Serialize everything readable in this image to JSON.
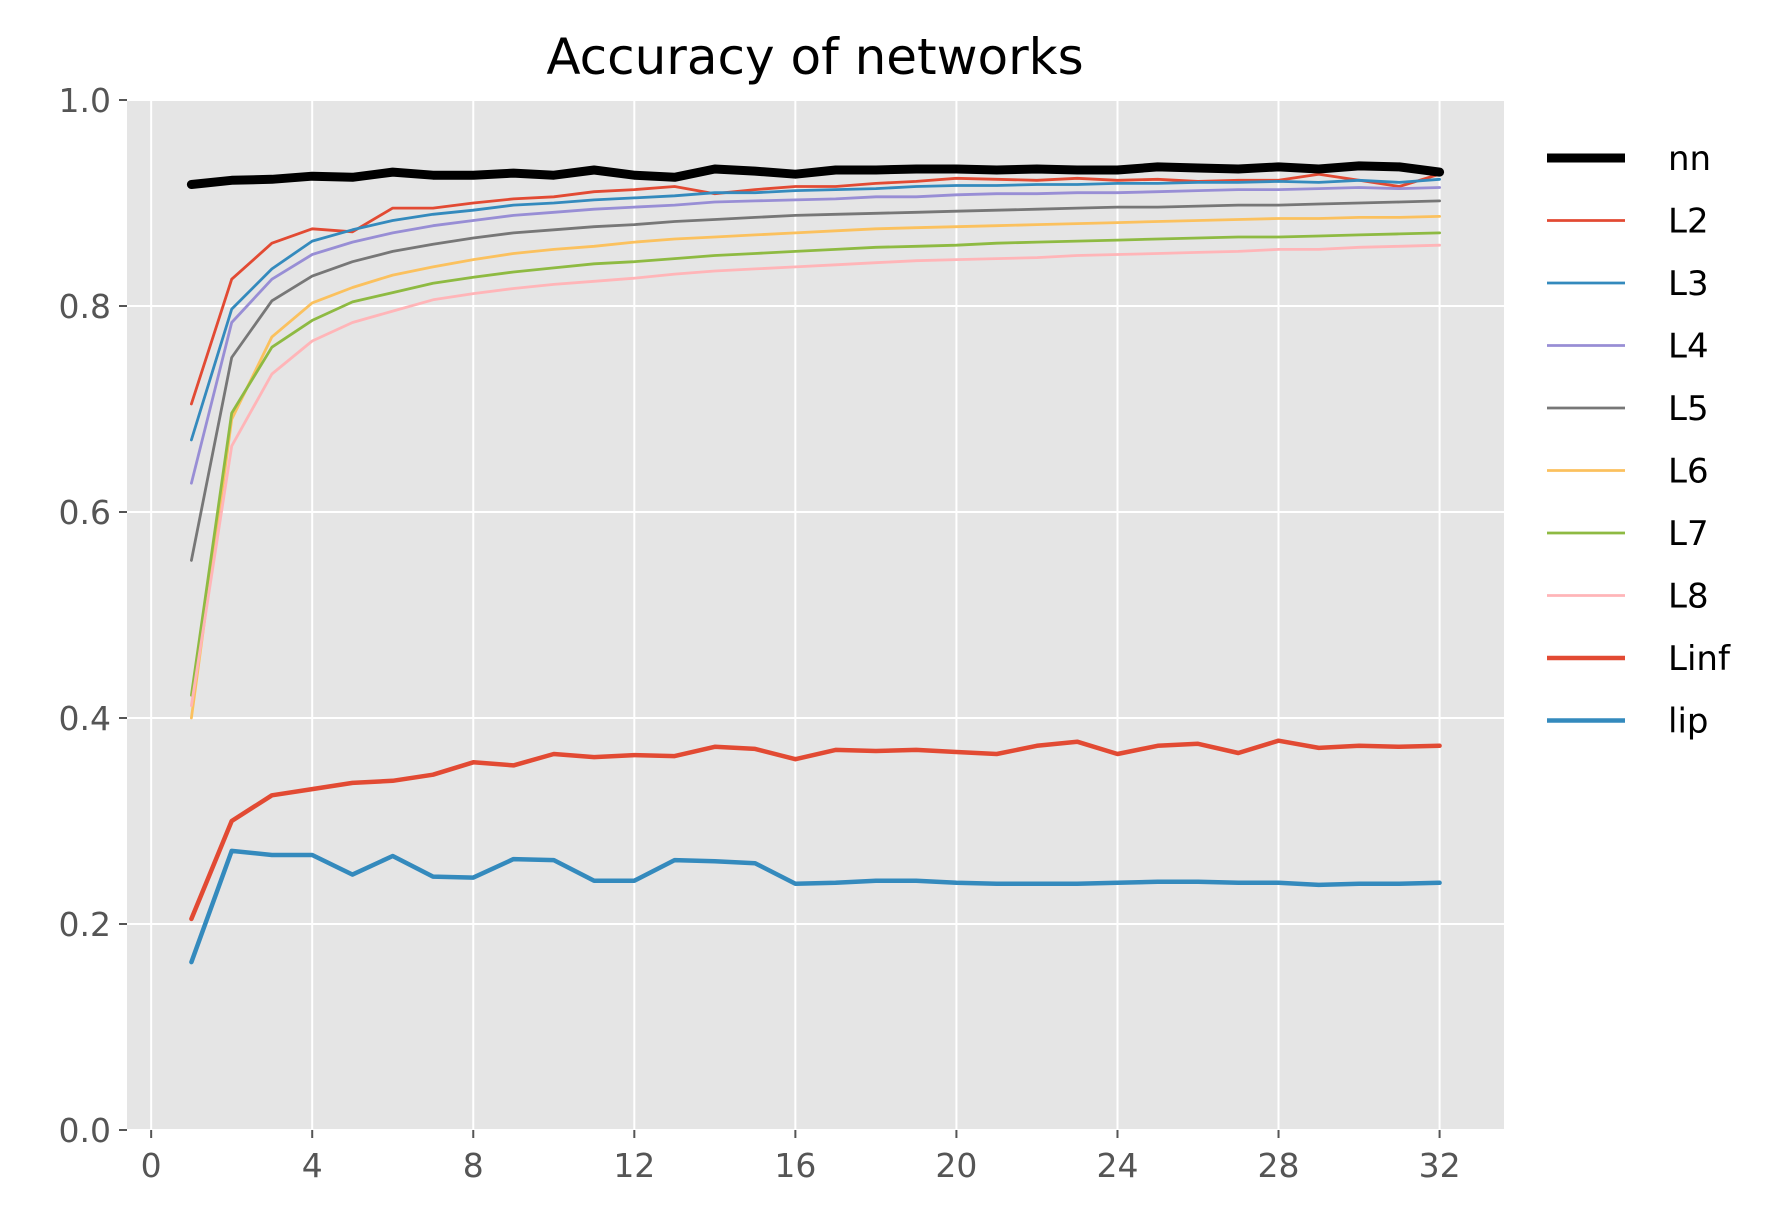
{
  "chart_data": {
    "type": "line",
    "title": "Accuracy of networks",
    "xlabel": "",
    "ylabel": "",
    "xlim": [
      -0.6,
      33.6
    ],
    "ylim": [
      0.0,
      1.0
    ],
    "xticks": [
      0,
      4,
      8,
      12,
      16,
      20,
      24,
      28,
      32
    ],
    "yticks": [
      0.0,
      0.2,
      0.4,
      0.6,
      0.8,
      1.0
    ],
    "xtick_labels": [
      "0",
      "4",
      "8",
      "12",
      "16",
      "20",
      "24",
      "28",
      "32"
    ],
    "ytick_labels": [
      "0.0",
      "0.2",
      "0.4",
      "0.6",
      "0.8",
      "1.0"
    ],
    "grid": true,
    "legend_position": "outside-right",
    "background_color": "#e5e5e5",
    "x": [
      1,
      2,
      3,
      4,
      5,
      6,
      7,
      8,
      9,
      10,
      11,
      12,
      13,
      14,
      15,
      16,
      17,
      18,
      19,
      20,
      21,
      22,
      23,
      24,
      25,
      26,
      27,
      28,
      29,
      30,
      31,
      32
    ],
    "series": [
      {
        "name": "nn",
        "color": "#000000",
        "values": [
          0.918,
          0.922,
          0.923,
          0.926,
          0.925,
          0.93,
          0.927,
          0.927,
          0.929,
          0.927,
          0.932,
          0.927,
          0.925,
          0.933,
          0.931,
          0.928,
          0.932,
          0.932,
          0.933,
          0.933,
          0.932,
          0.933,
          0.932,
          0.932,
          0.935,
          0.934,
          0.933,
          0.935,
          0.933,
          0.936,
          0.935,
          0.93
        ]
      },
      {
        "name": "L2",
        "color": "#e24a33",
        "values": [
          0.705,
          0.826,
          0.861,
          0.875,
          0.872,
          0.895,
          0.895,
          0.9,
          0.904,
          0.906,
          0.911,
          0.913,
          0.916,
          0.909,
          0.913,
          0.916,
          0.916,
          0.919,
          0.921,
          0.924,
          0.923,
          0.922,
          0.924,
          0.922,
          0.923,
          0.921,
          0.922,
          0.922,
          0.928,
          0.922,
          0.916,
          0.928
        ]
      },
      {
        "name": "L3",
        "color": "#348abd",
        "values": [
          0.67,
          0.797,
          0.836,
          0.863,
          0.874,
          0.883,
          0.889,
          0.893,
          0.898,
          0.9,
          0.903,
          0.905,
          0.907,
          0.91,
          0.91,
          0.912,
          0.913,
          0.914,
          0.916,
          0.917,
          0.917,
          0.918,
          0.918,
          0.919,
          0.919,
          0.92,
          0.92,
          0.921,
          0.92,
          0.922,
          0.92,
          0.923
        ]
      },
      {
        "name": "L4",
        "color": "#988ed5",
        "values": [
          0.628,
          0.784,
          0.826,
          0.85,
          0.862,
          0.871,
          0.878,
          0.883,
          0.888,
          0.891,
          0.894,
          0.896,
          0.898,
          0.901,
          0.902,
          0.903,
          0.904,
          0.906,
          0.906,
          0.908,
          0.909,
          0.909,
          0.91,
          0.91,
          0.911,
          0.912,
          0.913,
          0.913,
          0.914,
          0.915,
          0.914,
          0.915
        ]
      },
      {
        "name": "L5",
        "color": "#777777",
        "values": [
          0.553,
          0.75,
          0.805,
          0.829,
          0.843,
          0.853,
          0.86,
          0.866,
          0.871,
          0.874,
          0.877,
          0.879,
          0.882,
          0.884,
          0.886,
          0.888,
          0.889,
          0.89,
          0.891,
          0.892,
          0.893,
          0.894,
          0.895,
          0.896,
          0.896,
          0.897,
          0.898,
          0.898,
          0.899,
          0.9,
          0.901,
          0.902
        ]
      },
      {
        "name": "L6",
        "color": "#fbc15e",
        "values": [
          0.4,
          0.69,
          0.77,
          0.803,
          0.818,
          0.83,
          0.838,
          0.845,
          0.851,
          0.855,
          0.858,
          0.862,
          0.865,
          0.867,
          0.869,
          0.871,
          0.873,
          0.875,
          0.876,
          0.877,
          0.878,
          0.879,
          0.88,
          0.881,
          0.882,
          0.883,
          0.884,
          0.885,
          0.885,
          0.886,
          0.886,
          0.887
        ]
      },
      {
        "name": "L7",
        "color": "#8eba42",
        "values": [
          0.422,
          0.696,
          0.76,
          0.786,
          0.804,
          0.813,
          0.822,
          0.828,
          0.833,
          0.837,
          0.841,
          0.843,
          0.846,
          0.849,
          0.851,
          0.853,
          0.855,
          0.857,
          0.858,
          0.859,
          0.861,
          0.862,
          0.863,
          0.864,
          0.865,
          0.866,
          0.867,
          0.867,
          0.868,
          0.869,
          0.87,
          0.871
        ]
      },
      {
        "name": "L8",
        "color": "#ffb5b8",
        "values": [
          0.412,
          0.664,
          0.734,
          0.766,
          0.784,
          0.795,
          0.806,
          0.812,
          0.817,
          0.821,
          0.824,
          0.827,
          0.831,
          0.834,
          0.836,
          0.838,
          0.84,
          0.842,
          0.844,
          0.845,
          0.846,
          0.847,
          0.849,
          0.85,
          0.851,
          0.852,
          0.853,
          0.855,
          0.855,
          0.857,
          0.858,
          0.859
        ]
      },
      {
        "name": "Linf",
        "color": "#e24a33",
        "values": [
          0.205,
          0.3,
          0.325,
          0.331,
          0.337,
          0.339,
          0.345,
          0.357,
          0.354,
          0.365,
          0.362,
          0.364,
          0.363,
          0.372,
          0.37,
          0.36,
          0.369,
          0.368,
          0.369,
          0.367,
          0.365,
          0.373,
          0.377,
          0.365,
          0.373,
          0.375,
          0.366,
          0.378,
          0.371,
          0.373,
          0.372,
          0.373
        ]
      },
      {
        "name": "lip",
        "color": "#348abd",
        "values": [
          0.163,
          0.271,
          0.267,
          0.267,
          0.248,
          0.266,
          0.246,
          0.245,
          0.263,
          0.262,
          0.242,
          0.242,
          0.262,
          0.261,
          0.259,
          0.239,
          0.24,
          0.242,
          0.242,
          0.24,
          0.239,
          0.239,
          0.239,
          0.24,
          0.241,
          0.241,
          0.24,
          0.24,
          0.238,
          0.239,
          0.239,
          0.24
        ]
      }
    ]
  }
}
